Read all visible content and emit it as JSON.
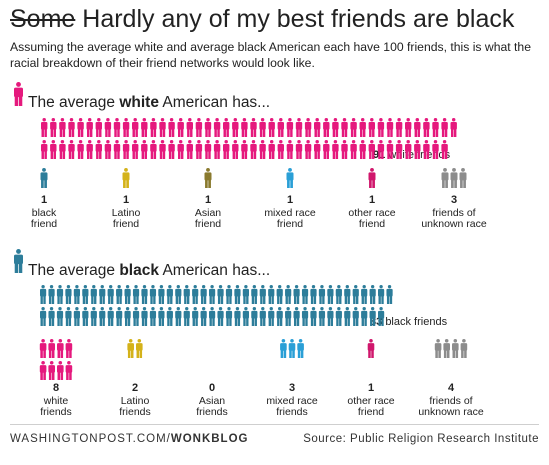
{
  "title": {
    "strike_word": "Some",
    "rest": "Hardly any of my best friends are black"
  },
  "subtitle": "Assuming the average white and average black American each have 100 friends, this is what the racial breakdown of their friend networks would look like.",
  "colors": {
    "white": "#e5197d",
    "black": "#2d7d9a",
    "latino": "#d4b21a",
    "asian": "#8a7a2e",
    "mixed": "#2a9fd6",
    "other": "#d0176c",
    "unknown": "#8c8c8c"
  },
  "chart_data": [
    {
      "type": "pictogram",
      "heading": {
        "pre": "The average",
        "bold": "white",
        "post": "American has..."
      },
      "main_group": {
        "key": "white",
        "count": 91,
        "label": "white friends"
      },
      "categories": [
        {
          "key": "black",
          "count": 1,
          "line1": "black",
          "line2": "friend"
        },
        {
          "key": "latino",
          "count": 1,
          "line1": "Latino",
          "line2": "friend"
        },
        {
          "key": "asian",
          "count": 1,
          "line1": "Asian",
          "line2": "friend"
        },
        {
          "key": "mixed",
          "count": 1,
          "line1": "mixed race",
          "line2": "friend"
        },
        {
          "key": "other",
          "count": 1,
          "line1": "other race",
          "line2": "friend"
        },
        {
          "key": "unknown",
          "count": 3,
          "line1": "friends of",
          "line2": "unknown race"
        }
      ]
    },
    {
      "type": "pictogram",
      "heading": {
        "pre": "The average",
        "bold": "black",
        "post": "American has..."
      },
      "main_group": {
        "key": "black",
        "count": 83,
        "label": "black friends"
      },
      "categories": [
        {
          "key": "white",
          "count": 8,
          "line1": "white",
          "line2": "friends"
        },
        {
          "key": "latino",
          "count": 2,
          "line1": "Latino",
          "line2": "friends"
        },
        {
          "key": "asian",
          "count": 0,
          "line1": "Asian",
          "line2": "friends"
        },
        {
          "key": "mixed",
          "count": 3,
          "line1": "mixed race",
          "line2": "friends"
        },
        {
          "key": "other",
          "count": 1,
          "line1": "other race",
          "line2": "friend"
        },
        {
          "key": "unknown",
          "count": 4,
          "line1": "friends of",
          "line2": "unknown race"
        }
      ]
    }
  ],
  "footer": {
    "site": "WASHINGTONPOST.COM/",
    "section": "WONKBLOG",
    "source": "Source: Public Religion Research Institute"
  }
}
